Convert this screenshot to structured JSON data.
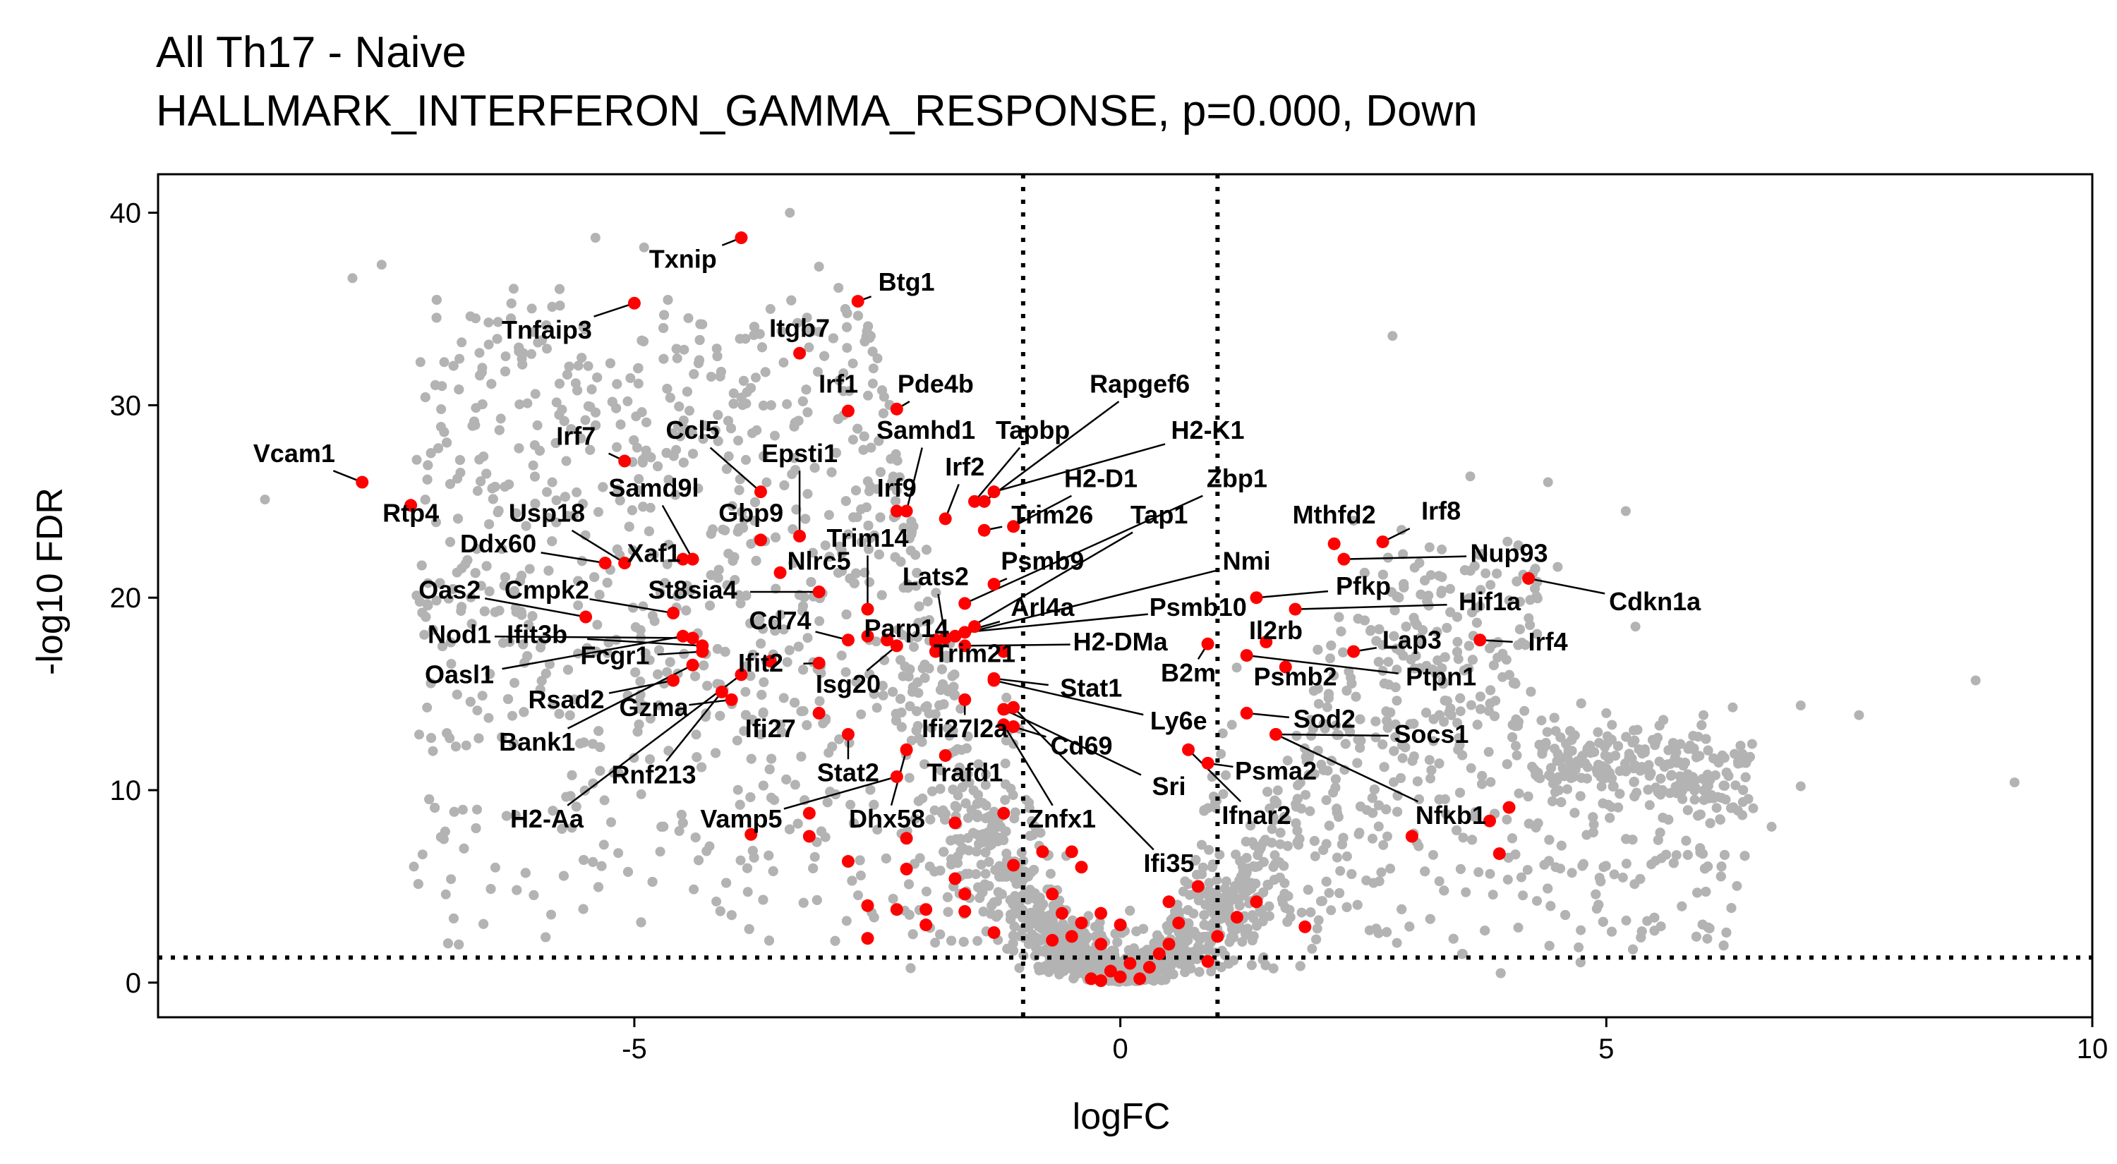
{
  "chart_data": {
    "type": "scatter",
    "title": "All Th17 - Naive",
    "subtitle": "HALLMARK_INTERFERON_GAMMA_RESPONSE, p=0.000, Down",
    "xlabel": "logFC",
    "ylabel": "-log10 FDR",
    "xlim": [
      -9.9,
      10
    ],
    "ylim": [
      -1.8,
      42
    ],
    "x_ticks": [
      -5,
      0,
      5,
      10
    ],
    "y_ticks": [
      0,
      10,
      20,
      30,
      40
    ],
    "x_tick_labels": [
      "-5",
      "0",
      "5",
      "10"
    ],
    "y_tick_labels": [
      "0",
      "10",
      "20",
      "30",
      "40"
    ],
    "thresholds": {
      "logfc": [
        -1,
        1
      ],
      "neg_log10_fdr": 1.3
    },
    "grid": false,
    "legend": "none",
    "colors": {
      "background_points": "#b3b3b3",
      "highlight_points": "#ff0000",
      "threshold_lines": "#000000"
    },
    "highlighted_genes": [
      {
        "gene": "Vcam1",
        "x": -7.8,
        "y": 26.0,
        "label_x": -8.5,
        "label_y": 27.4
      },
      {
        "gene": "Tnfaip3",
        "x": -5.0,
        "y": 35.3,
        "label_x": -5.9,
        "label_y": 33.8
      },
      {
        "gene": "Txnip",
        "x": -3.9,
        "y": 38.7,
        "label_x": -4.5,
        "label_y": 37.5
      },
      {
        "gene": "Btg1",
        "x": -2.7,
        "y": 35.4,
        "label_x": -2.2,
        "label_y": 36.3
      },
      {
        "gene": "Itgb7",
        "x": -3.3,
        "y": 32.7,
        "label_x": -3.3,
        "label_y": 33.9
      },
      {
        "gene": "Irf1",
        "x": -2.8,
        "y": 29.7,
        "label_x": -2.9,
        "label_y": 31.0
      },
      {
        "gene": "Pde4b",
        "x": -2.3,
        "y": 29.8,
        "label_x": -1.9,
        "label_y": 31.0
      },
      {
        "gene": "Rapgef6",
        "x": -1.4,
        "y": 25.0,
        "label_x": 0.2,
        "label_y": 31.0
      },
      {
        "gene": "Irf7",
        "x": -5.1,
        "y": 27.1,
        "label_x": -5.6,
        "label_y": 28.3
      },
      {
        "gene": "Ccl5",
        "x": -3.7,
        "y": 25.5,
        "label_x": -4.4,
        "label_y": 28.6
      },
      {
        "gene": "Epsti1",
        "x": -3.3,
        "y": 23.2,
        "label_x": -3.3,
        "label_y": 27.4
      },
      {
        "gene": "Samhd1",
        "x": -2.2,
        "y": 24.5,
        "label_x": -2.0,
        "label_y": 28.6
      },
      {
        "gene": "Tapbp",
        "x": -1.5,
        "y": 25.0,
        "label_x": -0.9,
        "label_y": 28.6
      },
      {
        "gene": "H2-K1",
        "x": -1.3,
        "y": 25.5,
        "label_x": 0.9,
        "label_y": 28.6
      },
      {
        "gene": "Irf2",
        "x": -1.8,
        "y": 24.1,
        "label_x": -1.6,
        "label_y": 26.7
      },
      {
        "gene": "Irf9",
        "x": -2.3,
        "y": 24.5,
        "label_x": -2.3,
        "label_y": 25.6
      },
      {
        "gene": "H2-D1",
        "x": -1.1,
        "y": 23.7,
        "label_x": -0.2,
        "label_y": 26.1
      },
      {
        "gene": "Zbp1",
        "x": -1.6,
        "y": 19.7,
        "label_x": 1.2,
        "label_y": 26.1
      },
      {
        "gene": "Samd9l",
        "x": -4.4,
        "y": 22.0,
        "label_x": -4.8,
        "label_y": 25.6
      },
      {
        "gene": "Usp18",
        "x": -5.1,
        "y": 21.8,
        "label_x": -5.9,
        "label_y": 24.3
      },
      {
        "gene": "Rtp4",
        "x": -7.3,
        "y": 24.8,
        "label_x": -7.3,
        "label_y": 24.3
      },
      {
        "gene": "Gbp9",
        "x": -3.7,
        "y": 23.0,
        "label_x": -3.8,
        "label_y": 24.3
      },
      {
        "gene": "Trim14",
        "x": -2.6,
        "y": 19.4,
        "label_x": -2.6,
        "label_y": 23.0
      },
      {
        "gene": "Trim26",
        "x": -1.4,
        "y": 23.5,
        "label_x": -0.7,
        "label_y": 24.2
      },
      {
        "gene": "Tap1",
        "x": -1.7,
        "y": 18.0,
        "label_x": 0.4,
        "label_y": 24.2
      },
      {
        "gene": "Ddx60",
        "x": -5.3,
        "y": 21.8,
        "label_x": -6.4,
        "label_y": 22.7
      },
      {
        "gene": "Xaf1",
        "x": -4.5,
        "y": 22.0,
        "label_x": -4.8,
        "label_y": 22.2
      },
      {
        "gene": "Nlrc5",
        "x": -3.5,
        "y": 21.3,
        "label_x": -3.1,
        "label_y": 21.8
      },
      {
        "gene": "Psmb9",
        "x": -1.3,
        "y": 20.7,
        "label_x": -0.8,
        "label_y": 21.8
      },
      {
        "gene": "Lats2",
        "x": -1.8,
        "y": 17.9,
        "label_x": -1.9,
        "label_y": 21.0
      },
      {
        "gene": "Nmi",
        "x": -1.8,
        "y": 17.9,
        "label_x": 1.3,
        "label_y": 21.8
      },
      {
        "gene": "Oas2",
        "x": -5.5,
        "y": 19.0,
        "label_x": -6.9,
        "label_y": 20.3
      },
      {
        "gene": "Cmpk2",
        "x": -4.6,
        "y": 19.2,
        "label_x": -5.9,
        "label_y": 20.3
      },
      {
        "gene": "St8sia4",
        "x": -3.1,
        "y": 20.3,
        "label_x": -4.4,
        "label_y": 20.3
      },
      {
        "gene": "Arl4a",
        "x": -1.9,
        "y": 17.8,
        "label_x": -0.8,
        "label_y": 19.4
      },
      {
        "gene": "Psmb10",
        "x": -1.6,
        "y": 18.2,
        "label_x": 0.8,
        "label_y": 19.4
      },
      {
        "gene": "Pfkp",
        "x": 1.4,
        "y": 20.0,
        "label_x": 2.5,
        "label_y": 20.5
      },
      {
        "gene": "Hif1a",
        "x": 1.8,
        "y": 19.4,
        "label_x": 3.8,
        "label_y": 19.7
      },
      {
        "gene": "Cdkn1a",
        "x": 4.2,
        "y": 21.0,
        "label_x": 5.5,
        "label_y": 19.7
      },
      {
        "gene": "Cd74",
        "x": -2.8,
        "y": 17.8,
        "label_x": -3.5,
        "label_y": 18.7
      },
      {
        "gene": "Parp14",
        "x": -2.4,
        "y": 17.8,
        "label_x": -2.2,
        "label_y": 18.3
      },
      {
        "gene": "Nod1",
        "x": -4.4,
        "y": 17.9,
        "label_x": -6.8,
        "label_y": 18.0
      },
      {
        "gene": "Ifit3b",
        "x": -4.3,
        "y": 17.5,
        "label_x": -6.0,
        "label_y": 18.0
      },
      {
        "gene": "Fcgr1",
        "x": -4.3,
        "y": 17.2,
        "label_x": -5.2,
        "label_y": 16.9
      },
      {
        "gene": "Oasl1",
        "x": -4.5,
        "y": 18.0,
        "label_x": -6.8,
        "label_y": 15.9
      },
      {
        "gene": "Ifit2",
        "x": -3.1,
        "y": 16.6,
        "label_x": -3.7,
        "label_y": 16.5
      },
      {
        "gene": "Trim21",
        "x": -1.9,
        "y": 17.2,
        "label_x": -1.5,
        "label_y": 17.0
      },
      {
        "gene": "H2-DMa",
        "x": -1.6,
        "y": 17.5,
        "label_x": 0.0,
        "label_y": 17.6
      },
      {
        "gene": "Il2rb",
        "x": 1.5,
        "y": 17.7,
        "label_x": 1.6,
        "label_y": 18.2
      },
      {
        "gene": "Lap3",
        "x": 2.4,
        "y": 17.2,
        "label_x": 3.0,
        "label_y": 17.7
      },
      {
        "gene": "Irf4",
        "x": 3.7,
        "y": 17.8,
        "label_x": 4.4,
        "label_y": 17.6
      },
      {
        "gene": "B2m",
        "x": 0.9,
        "y": 17.6,
        "label_x": 0.7,
        "label_y": 16.0
      },
      {
        "gene": "Psmb2",
        "x": 1.7,
        "y": 16.4,
        "label_x": 1.8,
        "label_y": 15.8
      },
      {
        "gene": "Ptpn1",
        "x": 1.3,
        "y": 17.0,
        "label_x": 3.3,
        "label_y": 15.8
      },
      {
        "gene": "Stat1",
        "x": -1.3,
        "y": 15.8,
        "label_x": -0.3,
        "label_y": 15.2
      },
      {
        "gene": "Isg20",
        "x": -2.3,
        "y": 17.5,
        "label_x": -2.8,
        "label_y": 15.4
      },
      {
        "gene": "Rsad2",
        "x": -4.6,
        "y": 15.7,
        "label_x": -5.7,
        "label_y": 14.6
      },
      {
        "gene": "Gzma",
        "x": -4.0,
        "y": 14.7,
        "label_x": -4.8,
        "label_y": 14.2
      },
      {
        "gene": "Bank1",
        "x": -4.4,
        "y": 16.5,
        "label_x": -6.0,
        "label_y": 12.4
      },
      {
        "gene": "Ifi27",
        "x": -3.1,
        "y": 14.0,
        "label_x": -3.6,
        "label_y": 13.1
      },
      {
        "gene": "Ly6e",
        "x": -1.3,
        "y": 15.7,
        "label_x": 0.6,
        "label_y": 13.5
      },
      {
        "gene": "Sod2",
        "x": 1.3,
        "y": 14.0,
        "label_x": 2.1,
        "label_y": 13.6
      },
      {
        "gene": "Socs1",
        "x": 1.6,
        "y": 12.9,
        "label_x": 3.2,
        "label_y": 12.8
      },
      {
        "gene": "Ifi27l2a",
        "x": -1.6,
        "y": 14.7,
        "label_x": -1.6,
        "label_y": 13.1
      },
      {
        "gene": "Cd69",
        "x": -1.1,
        "y": 13.3,
        "label_x": -0.4,
        "label_y": 12.2
      },
      {
        "gene": "Rnf213",
        "x": -4.1,
        "y": 15.1,
        "label_x": -4.8,
        "label_y": 10.7
      },
      {
        "gene": "Stat2",
        "x": -2.8,
        "y": 12.9,
        "label_x": -2.8,
        "label_y": 10.8
      },
      {
        "gene": "Trafd1",
        "x": -1.8,
        "y": 11.8,
        "label_x": -1.6,
        "label_y": 10.8
      },
      {
        "gene": "Psma2",
        "x": 0.9,
        "y": 11.4,
        "label_x": 1.6,
        "label_y": 10.9
      },
      {
        "gene": "Sri",
        "x": -1.2,
        "y": 14.2,
        "label_x": 0.5,
        "label_y": 10.1
      },
      {
        "gene": "H2-Aa",
        "x": -3.9,
        "y": 16.0,
        "label_x": -5.9,
        "label_y": 8.4
      },
      {
        "gene": "Vamp5",
        "x": -2.3,
        "y": 10.7,
        "label_x": -3.9,
        "label_y": 8.4
      },
      {
        "gene": "Dhx58",
        "x": -2.2,
        "y": 12.1,
        "label_x": -2.4,
        "label_y": 8.4
      },
      {
        "gene": "Znfx1",
        "x": -1.2,
        "y": 13.4,
        "label_x": -0.6,
        "label_y": 8.4
      },
      {
        "gene": "Ifnar2",
        "x": 0.7,
        "y": 12.1,
        "label_x": 1.4,
        "label_y": 8.6
      },
      {
        "gene": "Nfkb1",
        "x": 1.6,
        "y": 12.9,
        "label_x": 3.4,
        "label_y": 8.6
      },
      {
        "gene": "Ifi35",
        "x": -1.1,
        "y": 14.3,
        "label_x": 0.5,
        "label_y": 6.1
      },
      {
        "gene": "Mthfd2",
        "x": 2.2,
        "y": 22.8,
        "label_x": 2.2,
        "label_y": 24.2
      },
      {
        "gene": "Irf8",
        "x": 2.7,
        "y": 22.9,
        "label_x": 3.3,
        "label_y": 24.4
      },
      {
        "gene": "Nup93",
        "x": 2.3,
        "y": 22.0,
        "label_x": 4.0,
        "label_y": 22.2
      }
    ],
    "other_highlighted_points": [
      {
        "x": -3.6,
        "y": 16.7
      },
      {
        "x": -3.2,
        "y": 8.8
      },
      {
        "x": -3.2,
        "y": 7.6
      },
      {
        "x": -3.8,
        "y": 7.7
      },
      {
        "x": -2.8,
        "y": 6.3
      },
      {
        "x": -2.2,
        "y": 7.5
      },
      {
        "x": -2.2,
        "y": 5.9
      },
      {
        "x": -1.7,
        "y": 8.3
      },
      {
        "x": -1.7,
        "y": 5.4
      },
      {
        "x": -1.6,
        "y": 4.6
      },
      {
        "x": -1.6,
        "y": 3.7
      },
      {
        "x": -1.2,
        "y": 8.8
      },
      {
        "x": -1.1,
        "y": 6.1
      },
      {
        "x": -0.8,
        "y": 6.8
      },
      {
        "x": -0.5,
        "y": 6.8
      },
      {
        "x": -0.4,
        "y": 6.0
      },
      {
        "x": -2.6,
        "y": 4.0
      },
      {
        "x": -2.3,
        "y": 3.8
      },
      {
        "x": -2.0,
        "y": 3.8
      },
      {
        "x": -2.0,
        "y": 3.0
      },
      {
        "x": -2.6,
        "y": 2.3
      },
      {
        "x": -1.3,
        "y": 2.6
      },
      {
        "x": -0.7,
        "y": 2.2
      },
      {
        "x": -0.7,
        "y": 4.6
      },
      {
        "x": -0.6,
        "y": 3.6
      },
      {
        "x": -0.4,
        "y": 3.1
      },
      {
        "x": -0.2,
        "y": 3.6
      },
      {
        "x": 0.0,
        "y": 3.0
      },
      {
        "x": -0.5,
        "y": 2.4
      },
      {
        "x": -0.2,
        "y": 2.0
      },
      {
        "x": 0.1,
        "y": 1.0
      },
      {
        "x": -0.1,
        "y": 0.6
      },
      {
        "x": 0.0,
        "y": 0.3
      },
      {
        "x": -0.3,
        "y": 0.2
      },
      {
        "x": -0.2,
        "y": 0.1
      },
      {
        "x": 0.2,
        "y": 0.2
      },
      {
        "x": 0.3,
        "y": 0.8
      },
      {
        "x": 0.4,
        "y": 1.5
      },
      {
        "x": 0.5,
        "y": 2.0
      },
      {
        "x": 0.6,
        "y": 3.1
      },
      {
        "x": 0.5,
        "y": 4.2
      },
      {
        "x": 0.8,
        "y": 5.0
      },
      {
        "x": 0.9,
        "y": 1.1
      },
      {
        "x": 1.0,
        "y": 2.4
      },
      {
        "x": 1.2,
        "y": 3.4
      },
      {
        "x": 1.4,
        "y": 4.2
      },
      {
        "x": 1.9,
        "y": 2.9
      },
      {
        "x": 3.9,
        "y": 6.7
      },
      {
        "x": 3.8,
        "y": 8.4
      },
      {
        "x": 4.0,
        "y": 9.1
      },
      {
        "x": 3.0,
        "y": 7.6
      },
      {
        "x": -1.9,
        "y": 17.7
      },
      {
        "x": -1.5,
        "y": 18.5
      },
      {
        "x": -2.6,
        "y": 18.0
      },
      {
        "x": -1.2,
        "y": 17.2
      }
    ]
  }
}
